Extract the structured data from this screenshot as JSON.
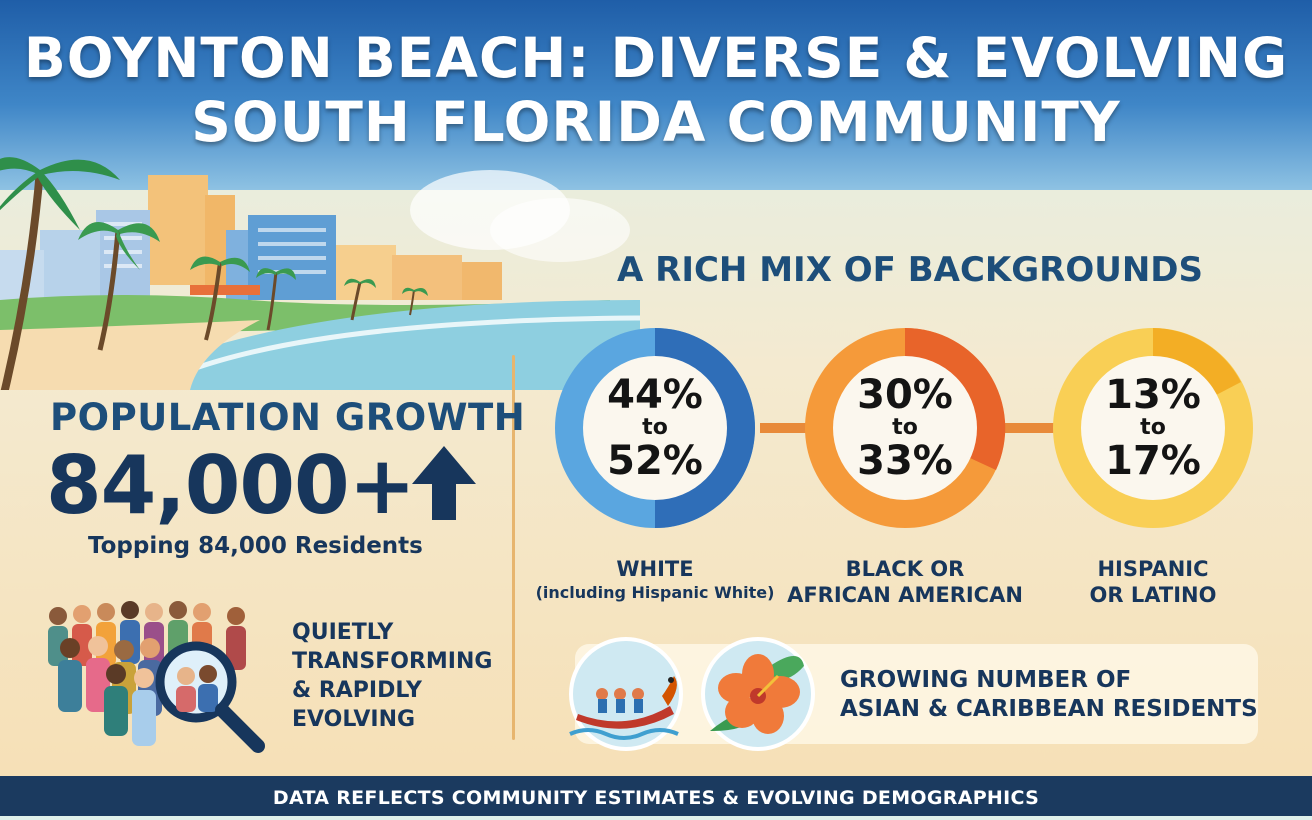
{
  "header": {
    "title_line1": "BOYNTON BEACH: DIVERSE & EVOLVING",
    "title_line2": "SOUTH FLORIDA COMMUNITY"
  },
  "population": {
    "heading": "POPULATION GROWTH",
    "number": "84,000+",
    "caption": "Topping 84,000 Residents",
    "icon": "arrow-up-icon"
  },
  "transforming": {
    "line1": "QUIETLY",
    "line2": "TRANSFORMING",
    "line3": "& RAPIDLY",
    "line4": "EVOLVING",
    "icon": "magnifier-crowd-icon"
  },
  "mix": {
    "heading": "A RICH MIX OF BACKGROUNDS",
    "groups": [
      {
        "low": "44%",
        "to": "to",
        "high": "52%",
        "label": "WHITE",
        "sublabel": "(including Hispanic White)",
        "color": "#3c85cf"
      },
      {
        "low": "30%",
        "to": "to",
        "high": "33%",
        "label": "BLACK OR",
        "sublabel": "AFRICAN AMERICAN",
        "color": "#f08a2c"
      },
      {
        "low": "13%",
        "to": "to",
        "high": "17%",
        "label": "HISPANIC",
        "sublabel": "OR LATINO",
        "color": "#f7bd3a"
      }
    ]
  },
  "asian_caribbean": {
    "line1": "GROWING NUMBER OF",
    "line2": "ASIAN & CARIBBEAN RESIDENTS",
    "icons": [
      "dragon-boat-icon",
      "hibiscus-icon"
    ]
  },
  "footer": {
    "text": "DATA REFLECTS COMMUNITY ESTIMATES & EVOLVING DEMOGRAPHICS"
  }
}
